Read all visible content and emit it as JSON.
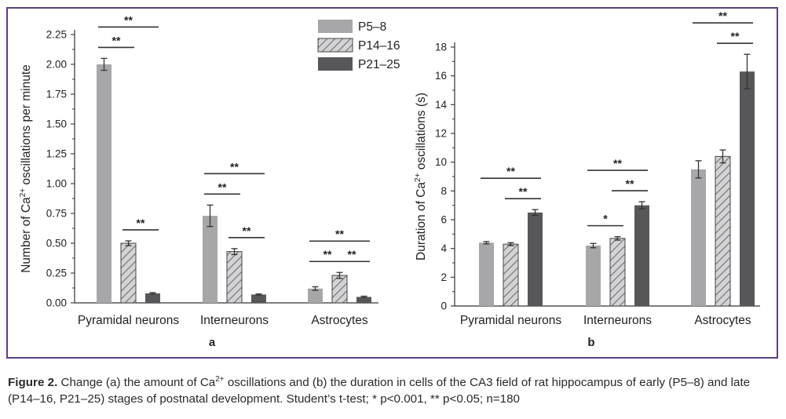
{
  "figure": {
    "caption_label": "Figure 2.",
    "caption_part1": " Change (a) the amount of Ca",
    "caption_sup1": "2+",
    "caption_part2": " oscillations and (b) the duration in cells of the CA3 field of rat hippocampus of early (P5–8) and late (P14–16, P21–25) stages of postnatal development. Student’s t-test; * p<0.001, ** p<0.05; n=180"
  },
  "legend": {
    "items": [
      {
        "label": "P5–8",
        "style": "solid-light"
      },
      {
        "label": "P14–16",
        "style": "hatched"
      },
      {
        "label": "P21–25",
        "style": "solid-dark"
      }
    ]
  },
  "colors": {
    "light": "#a7a7aa",
    "hatch_bg": "#d3d3d6",
    "hatch_line": "#6e6e72",
    "dark": "#57575a",
    "frame": "#5b3f86",
    "axis": "#333333"
  },
  "chart_data": [
    {
      "type": "bar",
      "panel_label": "a",
      "ylabel_pre": "Number of Ca",
      "ylabel_sup": "2+",
      "ylabel_post": " oscillations per minute",
      "categories": [
        "Pyramidal neurons",
        "Interneurons",
        "Astrocytes"
      ],
      "ylim": [
        0,
        2.25
      ],
      "yticks": [
        "0.00",
        "0.25",
        "0.50",
        "0.75",
        "1.00",
        "1.25",
        "1.50",
        "1.75",
        "2.00",
        "2.25"
      ],
      "series": [
        {
          "name": "P5–8",
          "values": [
            2.0,
            0.73,
            0.12
          ],
          "errors": [
            0.05,
            0.09,
            0.015
          ]
        },
        {
          "name": "P14–16",
          "values": [
            0.5,
            0.43,
            0.23
          ],
          "errors": [
            0.02,
            0.025,
            0.025
          ]
        },
        {
          "name": "P21–25",
          "values": [
            0.08,
            0.07,
            0.05
          ],
          "errors": [
            0.006,
            0.005,
            0.006
          ]
        }
      ],
      "significance": [
        {
          "category": 0,
          "from": 0,
          "to": 1,
          "label": "**"
        },
        {
          "category": 0,
          "from": 0,
          "to": 2,
          "label": "**"
        },
        {
          "category": 0,
          "from": 1,
          "to": 2,
          "label": "**"
        },
        {
          "category": 1,
          "from": 0,
          "to": 1,
          "label": "**"
        },
        {
          "category": 1,
          "from": 0,
          "to": 2,
          "label": "**"
        },
        {
          "category": 1,
          "from": 1,
          "to": 2,
          "label": "**"
        },
        {
          "category": 2,
          "from": 0,
          "to": 1,
          "label": "**"
        },
        {
          "category": 2,
          "from": 1,
          "to": 2,
          "label": "**"
        },
        {
          "category": 2,
          "from": 0,
          "to": 2,
          "label": "**"
        }
      ]
    },
    {
      "type": "bar",
      "panel_label": "b",
      "ylabel_pre": "Duration of Ca",
      "ylabel_sup": "2+",
      "ylabel_post": " oscillations (s)",
      "categories": [
        "Pyramidal neurons",
        "Interneurons",
        "Astrocytes"
      ],
      "ylim": [
        0,
        18
      ],
      "yticks": [
        "0",
        "2",
        "4",
        "6",
        "8",
        "10",
        "12",
        "14",
        "16",
        "18"
      ],
      "series": [
        {
          "name": "P5–8",
          "values": [
            4.4,
            4.2,
            9.5
          ],
          "errors": [
            0.08,
            0.15,
            0.6
          ]
        },
        {
          "name": "P14–16",
          "values": [
            4.3,
            4.7,
            10.4
          ],
          "errors": [
            0.1,
            0.12,
            0.45
          ]
        },
        {
          "name": "P21–25",
          "values": [
            6.5,
            7.0,
            16.3
          ],
          "errors": [
            0.2,
            0.25,
            1.2
          ]
        }
      ],
      "significance": [
        {
          "category": 0,
          "from": 0,
          "to": 2,
          "label": "**"
        },
        {
          "category": 0,
          "from": 1,
          "to": 2,
          "label": "**"
        },
        {
          "category": 1,
          "from": 0,
          "to": 1,
          "label": "*"
        },
        {
          "category": 1,
          "from": 0,
          "to": 2,
          "label": "**"
        },
        {
          "category": 1,
          "from": 1,
          "to": 2,
          "label": "**"
        },
        {
          "category": 2,
          "from": 0,
          "to": 2,
          "label": "**"
        },
        {
          "category": 2,
          "from": 1,
          "to": 2,
          "label": "**"
        }
      ]
    }
  ]
}
